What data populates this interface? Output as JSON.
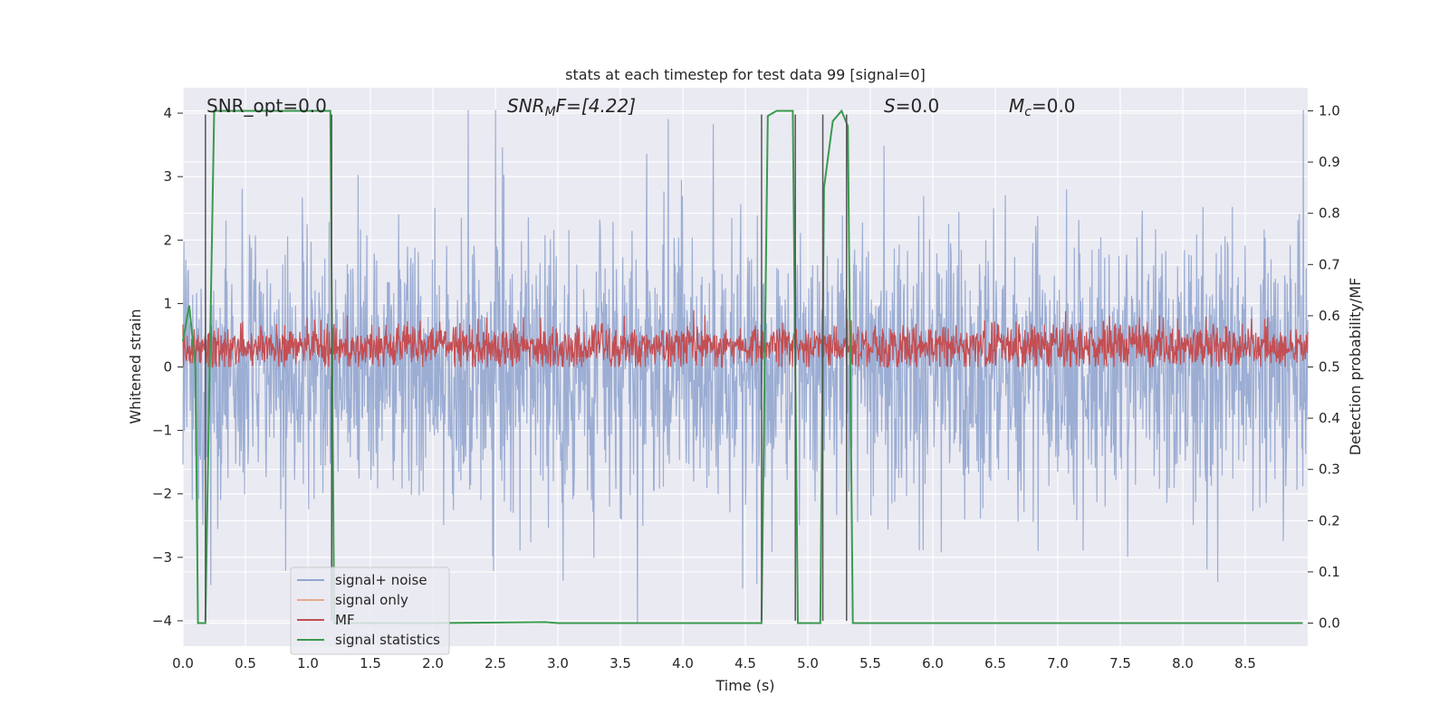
{
  "chart_data": {
    "type": "line",
    "title": "stats at each timestep for test data 99 [signal=0]",
    "xlabel": "Time (s)",
    "ylabel": "Whitened strain",
    "y2label": "Detection probability/MF",
    "xlim": [
      0.0,
      9.0
    ],
    "ylim": [
      -4.4,
      4.4
    ],
    "y2lim": [
      -0.045,
      1.045
    ],
    "xticks": [
      "0.0",
      "0.5",
      "1.0",
      "1.5",
      "2.0",
      "2.5",
      "3.0",
      "3.5",
      "4.0",
      "4.5",
      "5.0",
      "5.5",
      "6.0",
      "6.5",
      "7.0",
      "7.5",
      "8.0",
      "8.5"
    ],
    "yticks": [
      "4",
      "3",
      "2",
      "1",
      "0",
      "−1",
      "−2",
      "−3",
      "−4"
    ],
    "y2ticks": [
      "1.0",
      "0.9",
      "0.8",
      "0.7",
      "0.6",
      "0.5",
      "0.4",
      "0.3",
      "0.2",
      "0.1",
      "0.0"
    ],
    "grid": true,
    "legend_position": "lower-left",
    "annotations": {
      "snr_opt": "SNR_opt=0.0",
      "snr_mf_main": "SNR",
      "snr_mf_sub": "M",
      "snr_mf_rest": "F=[4.22]",
      "s_main": "S",
      "s_rest": "=0.0",
      "mc_main": "M",
      "mc_sub": "c",
      "mc_rest": "=0.0"
    },
    "series": [
      {
        "name": "signal+ noise",
        "color": "#92a6cf",
        "axis": "left",
        "style": "dense noise, mostly within ±2.5, peaks to about ±4"
      },
      {
        "name": "signal only",
        "color": "#e8a98c",
        "axis": "left",
        "values": []
      },
      {
        "name": "MF",
        "color": "#c44e52",
        "axis": "right",
        "style": "dense noise around 0.54, range about 0.50–0.62"
      },
      {
        "name": "signal statistics",
        "color": "#3a9a4e",
        "axis": "right",
        "x": [
          0.0,
          0.05,
          0.1,
          0.12,
          0.18,
          0.2,
          0.25,
          0.5,
          1.0,
          1.18,
          1.21,
          1.5,
          2.0,
          2.9,
          3.0,
          4.5,
          4.63,
          4.68,
          4.75,
          4.88,
          4.92,
          5.1,
          5.13,
          5.2,
          5.27,
          5.32,
          5.36,
          6.0,
          8.96
        ],
        "y": [
          0.55,
          0.62,
          0.5,
          0.0,
          0.0,
          0.3,
          1.0,
          1.0,
          1.0,
          1.0,
          0.0,
          0.0,
          0.0,
          0.002,
          0.0,
          0.0,
          0.0,
          0.99,
          1.0,
          1.0,
          0.0,
          0.0,
          0.85,
          0.98,
          1.0,
          0.97,
          0.0,
          0.0,
          0.0
        ]
      }
    ],
    "event_markers_x": [
      0.18,
      1.19,
      4.63,
      4.9,
      5.12,
      5.31
    ]
  },
  "legend": [
    {
      "label": "signal+ noise",
      "color": "#92a6cf"
    },
    {
      "label": "signal only",
      "color": "#e8a98c"
    },
    {
      "label": "MF",
      "color": "#c44e52"
    },
    {
      "label": "signal statistics",
      "color": "#3a9a4e"
    }
  ]
}
